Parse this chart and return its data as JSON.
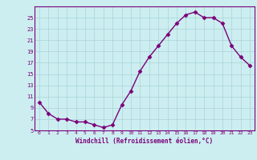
{
  "x": [
    0,
    1,
    2,
    3,
    4,
    5,
    6,
    7,
    8,
    9,
    10,
    11,
    12,
    13,
    14,
    15,
    16,
    17,
    18,
    19,
    20,
    21,
    22,
    23
  ],
  "y": [
    10,
    8,
    7,
    7,
    6.5,
    6.5,
    6,
    5.5,
    6,
    9.5,
    12,
    15.5,
    18,
    20,
    22,
    24,
    25.5,
    26,
    25,
    25,
    24,
    20,
    18,
    16.5
  ],
  "line_color": "#7b0079",
  "marker": "D",
  "marker_size": 2.5,
  "bg_color": "#cceef0",
  "grid_color": "#aad4d8",
  "xlabel": "Windchill (Refroidissement éolien,°C)",
  "ylim": [
    5,
    27
  ],
  "yticks": [
    5,
    7,
    9,
    11,
    13,
    15,
    17,
    19,
    21,
    23,
    25
  ],
  "xlim": [
    -0.5,
    23.5
  ],
  "xticks": [
    0,
    1,
    2,
    3,
    4,
    5,
    6,
    7,
    8,
    9,
    10,
    11,
    12,
    13,
    14,
    15,
    16,
    17,
    18,
    19,
    20,
    21,
    22,
    23
  ],
  "label_color": "#7b0079",
  "font": "monospace",
  "spine_color": "#7b0079"
}
